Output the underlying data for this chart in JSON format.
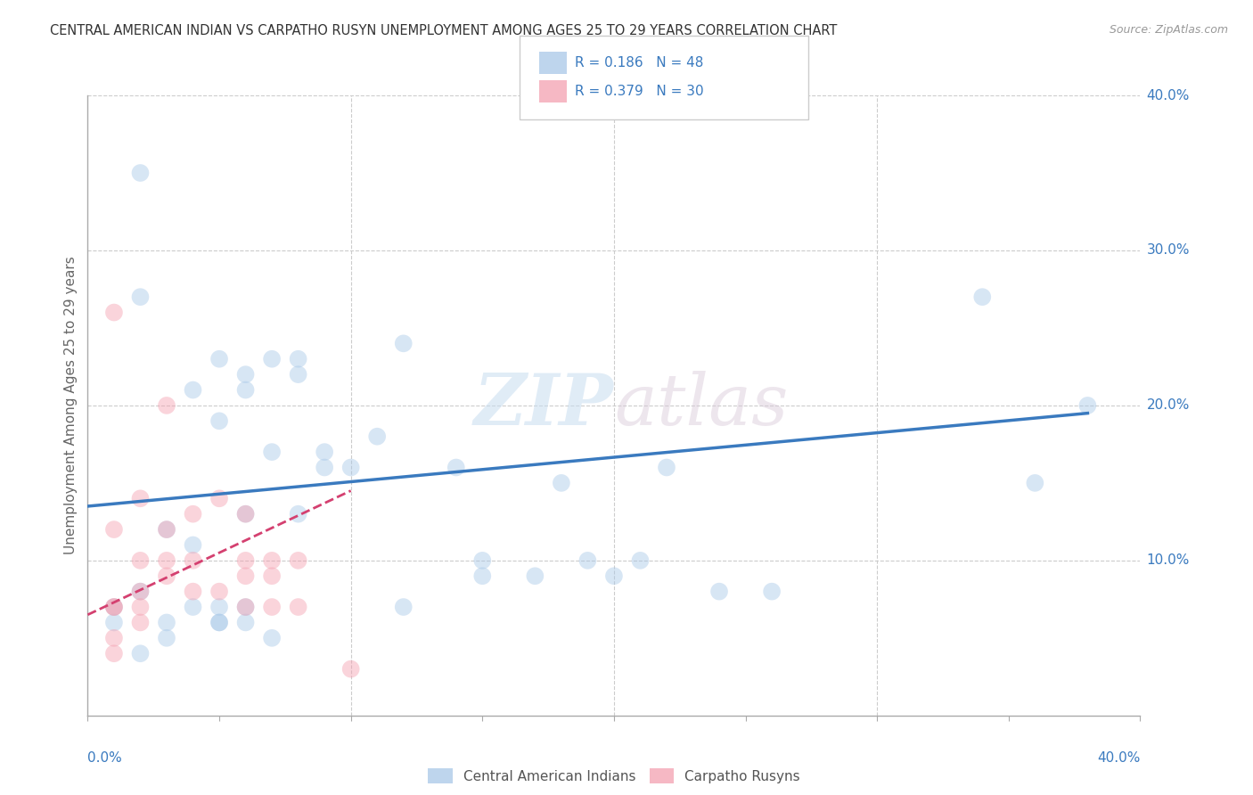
{
  "title": "CENTRAL AMERICAN INDIAN VS CARPATHO RUSYN UNEMPLOYMENT AMONG AGES 25 TO 29 YEARS CORRELATION CHART",
  "source": "Source: ZipAtlas.com",
  "ylabel": "Unemployment Among Ages 25 to 29 years",
  "xlim": [
    0.0,
    0.4
  ],
  "ylim": [
    0.0,
    0.4
  ],
  "xticks": [
    0.0,
    0.1,
    0.2,
    0.3,
    0.4
  ],
  "yticks": [
    0.1,
    0.2,
    0.3,
    0.4
  ],
  "xtick_labels_outer": [
    "0.0%",
    "40.0%"
  ],
  "ytick_labels": [
    "10.0%",
    "20.0%",
    "30.0%",
    "40.0%"
  ],
  "watermark_zip": "ZIP",
  "watermark_atlas": "atlas",
  "legend_blue_r": "0.186",
  "legend_blue_n": "48",
  "legend_pink_r": "0.379",
  "legend_pink_n": "30",
  "legend_blue_label": "Central American Indians",
  "legend_pink_label": "Carpatho Rusyns",
  "blue_color": "#a8c8e8",
  "pink_color": "#f4a0b0",
  "blue_line_color": "#3a7abf",
  "pink_line_color": "#d44070",
  "r_n_color": "#3a7abf",
  "blue_scatter_x": [
    0.02,
    0.02,
    0.03,
    0.03,
    0.01,
    0.01,
    0.02,
    0.02,
    0.04,
    0.04,
    0.05,
    0.05,
    0.06,
    0.06,
    0.06,
    0.07,
    0.07,
    0.08,
    0.08,
    0.08,
    0.09,
    0.1,
    0.11,
    0.12,
    0.12,
    0.14,
    0.15,
    0.15,
    0.17,
    0.18,
    0.19,
    0.2,
    0.21,
    0.22,
    0.24,
    0.26,
    0.03,
    0.04,
    0.05,
    0.05,
    0.05,
    0.06,
    0.06,
    0.07,
    0.09,
    0.34,
    0.36,
    0.38
  ],
  "blue_scatter_y": [
    0.35,
    0.27,
    0.12,
    0.05,
    0.07,
    0.06,
    0.04,
    0.08,
    0.21,
    0.11,
    0.23,
    0.19,
    0.21,
    0.22,
    0.13,
    0.23,
    0.17,
    0.22,
    0.23,
    0.13,
    0.16,
    0.16,
    0.18,
    0.24,
    0.07,
    0.16,
    0.1,
    0.09,
    0.09,
    0.15,
    0.1,
    0.09,
    0.1,
    0.16,
    0.08,
    0.08,
    0.06,
    0.07,
    0.06,
    0.06,
    0.07,
    0.07,
    0.06,
    0.05,
    0.17,
    0.27,
    0.15,
    0.2
  ],
  "pink_scatter_x": [
    0.01,
    0.01,
    0.01,
    0.01,
    0.01,
    0.01,
    0.02,
    0.02,
    0.02,
    0.02,
    0.02,
    0.03,
    0.03,
    0.03,
    0.03,
    0.04,
    0.04,
    0.04,
    0.05,
    0.05,
    0.06,
    0.06,
    0.06,
    0.06,
    0.07,
    0.07,
    0.07,
    0.08,
    0.08,
    0.1
  ],
  "pink_scatter_y": [
    0.26,
    0.12,
    0.07,
    0.07,
    0.05,
    0.04,
    0.14,
    0.1,
    0.08,
    0.07,
    0.06,
    0.2,
    0.12,
    0.1,
    0.09,
    0.13,
    0.1,
    0.08,
    0.14,
    0.08,
    0.13,
    0.1,
    0.09,
    0.07,
    0.1,
    0.09,
    0.07,
    0.1,
    0.07,
    0.03
  ],
  "blue_line_x": [
    0.0,
    0.38
  ],
  "blue_line_y": [
    0.135,
    0.195
  ],
  "pink_line_x": [
    0.0,
    0.1
  ],
  "pink_line_y": [
    0.065,
    0.145
  ],
  "grid_color": "#cccccc",
  "bg_color": "#ffffff",
  "marker_size": 200,
  "marker_alpha": 0.45
}
